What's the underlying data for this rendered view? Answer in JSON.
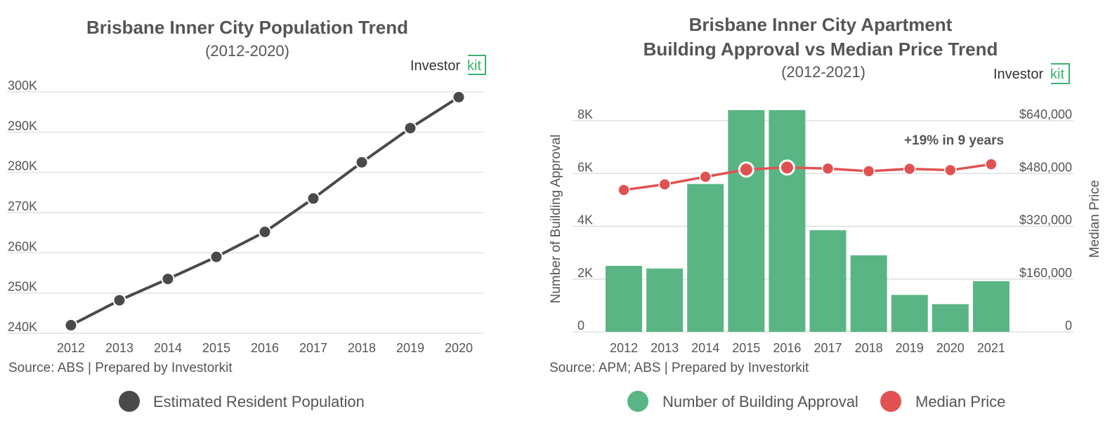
{
  "colors": {
    "population_line": "#4a4a4a",
    "bar": "#5ab584",
    "median_price": "#e05252",
    "logo_accent": "#3cb371"
  },
  "logo": {
    "text": "Investor",
    "accent_text": "kit"
  },
  "chart_data": [
    {
      "type": "line",
      "title": "Brisbane Inner City Population Trend",
      "subtitle": "(2012-2020)",
      "source": "Source: ABS | Prepared by Investorkit",
      "x": [
        "2012",
        "2013",
        "2014",
        "2015",
        "2016",
        "2017",
        "2018",
        "2019",
        "2020"
      ],
      "y_ticks": [
        "240K",
        "250K",
        "260K",
        "270K",
        "280K",
        "290K",
        "300K"
      ],
      "ylim": [
        240000,
        300000
      ],
      "series": [
        {
          "name": "Estimated Resident Population",
          "values": [
            242000,
            248200,
            253500,
            259000,
            265200,
            273500,
            282500,
            291000,
            298700
          ]
        }
      ],
      "grid": true,
      "legend": "bottom"
    },
    {
      "type": "bar+line",
      "title_line1": "Brisbane Inner City Apartment",
      "title_line2": "Building Approval vs Median Price Trend",
      "subtitle": "(2012-2021)",
      "source": "Source: APM; ABS | Prepared by Investorkit",
      "categories": [
        "2012",
        "2013",
        "2014",
        "2015",
        "2016",
        "2017",
        "2018",
        "2019",
        "2020",
        "2021"
      ],
      "y_left_label": "Number of Building Approval",
      "y_left_ticks": [
        "0",
        "2K",
        "4K",
        "6K",
        "8K"
      ],
      "y_left_lim": [
        0,
        8000
      ],
      "y_right_label": "Median Price",
      "y_right_ticks": [
        "0",
        "$160,000",
        "$320,000",
        "$480,000",
        "$640,000"
      ],
      "y_right_lim": [
        0,
        640000
      ],
      "series": [
        {
          "name": "Number of Building Approval",
          "axis": "left",
          "values": [
            2500,
            2400,
            5600,
            8400,
            8400,
            3850,
            2900,
            1400,
            1050,
            1920
          ]
        },
        {
          "name": "Median Price",
          "axis": "right",
          "values": [
            430000,
            447000,
            470000,
            492000,
            498000,
            495000,
            487000,
            494000,
            490000,
            508000
          ],
          "highlighted_points": [
            "2015",
            "2016"
          ]
        }
      ],
      "annotation": "+19% in 9 years",
      "grid": true,
      "legend": "bottom"
    }
  ]
}
